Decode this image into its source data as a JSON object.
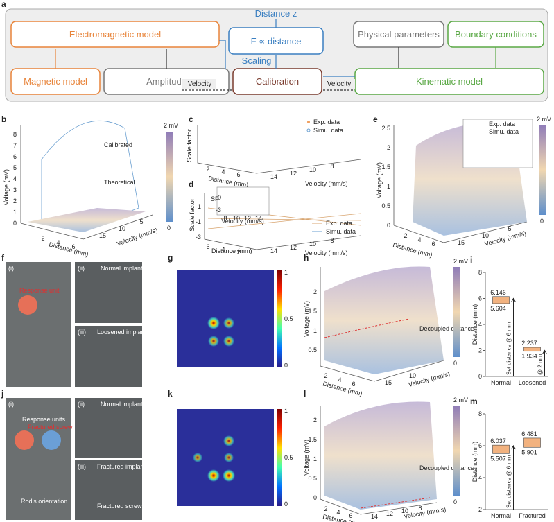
{
  "panel_a": {
    "label": "a",
    "electromagnetic": "Electromagnetic model",
    "magnetic": "Magnetic model",
    "amplitude": "Amplitude",
    "force": "F ∝ distance",
    "output": "Distance z",
    "scaling": "Scaling",
    "calibration": "Calibration",
    "physical": "Physical parameters",
    "boundary": "Boundary conditions",
    "kinematic": "Kinematic model",
    "velocity_left": "Velocity",
    "velocity_right": "Velocity"
  },
  "panel_b": {
    "label": "b",
    "y_label": "Voltage (mV)",
    "x_label": "Distance (mm)",
    "z_label": "Velocity (mm/s)",
    "yticks": [
      0,
      1,
      2,
      3,
      4,
      5,
      6,
      7,
      8
    ],
    "xticks": [
      2,
      4,
      6
    ],
    "zticks": [
      15,
      10,
      5
    ],
    "calibrated": "Calibrated",
    "theoretical": "Theoretical",
    "colorbar": [
      "2 mV",
      "0"
    ]
  },
  "panel_c": {
    "label": "c",
    "y_label": "Scale factor",
    "x_label": "Distance (mm)",
    "z_label": "Velocity (mm/s)",
    "xticks": [
      2,
      4,
      6
    ],
    "zticks": [
      14,
      12,
      10,
      8
    ],
    "legend": [
      "Exp. data",
      "Simu. data"
    ]
  },
  "panel_d": {
    "label": "d",
    "y_label": "Scale factor",
    "x_label": "Distance (mm)",
    "z_label": "Velocity (mm/s)",
    "yticks": [
      1,
      -1,
      -3
    ],
    "xticks": [
      6,
      4,
      2
    ],
    "zticks": [
      14,
      12,
      10,
      8
    ],
    "inset_y_label": "SF",
    "inset_yticks": [
      0,
      -3
    ],
    "inset_xticks": [
      8,
      10,
      12,
      14
    ],
    "inset_x_label": "Velocity (mm/s)",
    "legend": [
      "Exp. data",
      "Simu. data"
    ]
  },
  "panel_e": {
    "label": "e",
    "y_label": "Voltage (mV)",
    "x_label": "Distance (mm)",
    "z_label": "Velocity (mm/s)",
    "yticks": [
      0,
      0.5,
      1,
      1.5,
      2,
      2.5
    ],
    "xticks": [
      2,
      4,
      6
    ],
    "zticks": [
      15,
      10,
      5
    ],
    "legend": [
      "Exp. data",
      "Simu. data"
    ],
    "colorbar": [
      "2 mV",
      "0"
    ]
  },
  "panel_f": {
    "label": "f",
    "sub_i": "(i)",
    "response": "Response unit",
    "sub_ii": "(ii)",
    "normal": "Normal implant",
    "sub_iii": "(iii)",
    "loosened": "Loosened implant"
  },
  "panel_g": {
    "label": "g",
    "colorbar": [
      1,
      0.5,
      0
    ]
  },
  "panel_h": {
    "label": "h",
    "y_label": "Voltage (mV)",
    "x_label": "Distance (mm)",
    "z_label": "Velocity (mm/s)",
    "yticks": [
      0.5,
      1,
      1.5,
      2
    ],
    "xticks": [
      2,
      4,
      6
    ],
    "zticks": [
      15,
      10
    ],
    "annotation": "Decoupled distance",
    "colorbar": [
      "2 mV",
      "0"
    ]
  },
  "panel_j": {
    "label": "j",
    "sub_i": "(i)",
    "response": "Response units",
    "fractured_screw": "Fractured screw",
    "rod": "Rod's orientation",
    "sub_ii": "(ii)",
    "normal": "Normal implant",
    "sub_iii": "(iii)",
    "fractured": "Fractured implant",
    "fractured_screw_2": "Fractured screw"
  },
  "panel_k": {
    "label": "k",
    "colorbar": [
      1,
      0.5,
      0
    ]
  },
  "panel_l": {
    "label": "l",
    "y_label": "Voltage (mV)",
    "x_label": "Distance (mm)",
    "z_label": "Velocity (mm/s)",
    "yticks": [
      0,
      0.5,
      1,
      1.5,
      2
    ],
    "xticks": [
      2,
      4,
      6
    ],
    "zticks": [
      14,
      12,
      10,
      8
    ],
    "annotation": "Decoupled distance",
    "colorbar": [
      "2 mV",
      "0"
    ]
  },
  "chart_data": [
    {
      "type": "floating-bar",
      "panel_label": "i",
      "y_label": "Distance (mm)",
      "categories": [
        "Normal",
        "Loosened"
      ],
      "values": [
        [
          5.604,
          6.146
        ],
        [
          1.934,
          2.237
        ]
      ],
      "color": "#f2b27f",
      "ylim": [
        0,
        8
      ],
      "yticks": [
        0,
        2,
        4,
        6,
        8
      ],
      "set_distance": [
        6,
        2
      ],
      "set_distance_labels": [
        "Set distance @ 6 mm",
        "@ 2 mm"
      ]
    },
    {
      "type": "floating-bar",
      "panel_label": "m",
      "y_label": "Distance (mm)",
      "categories": [
        "Normal",
        "Fractured"
      ],
      "values": [
        [
          5.507,
          6.037
        ],
        [
          5.901,
          6.481
        ]
      ],
      "color": "#f2b27f",
      "ylim": [
        2,
        8
      ],
      "yticks": [
        2,
        4,
        6,
        8
      ],
      "set_distance": [
        6
      ],
      "set_distance_labels": [
        "Set distance @ 6 mm"
      ]
    }
  ]
}
